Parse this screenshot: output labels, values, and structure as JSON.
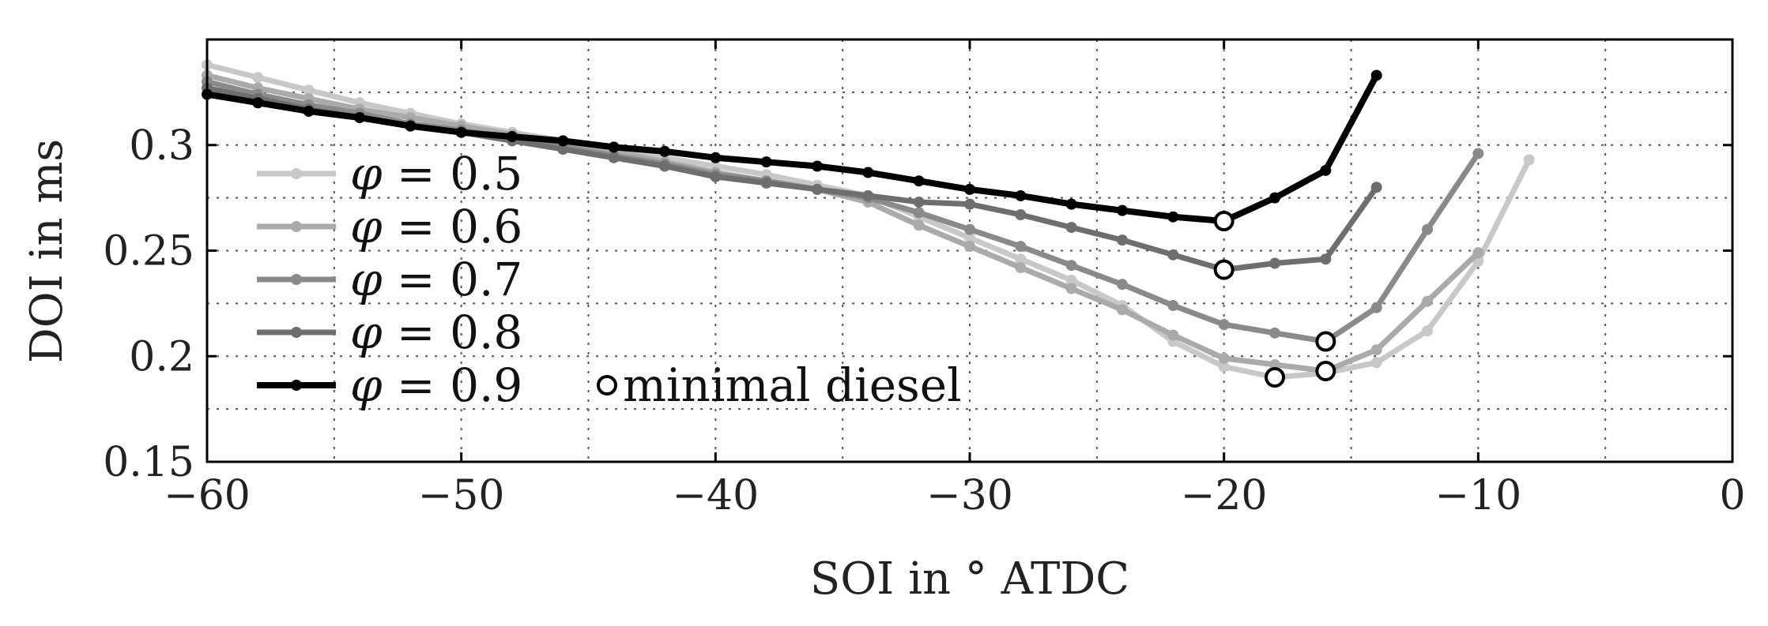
{
  "chart_data": {
    "type": "line",
    "title": "",
    "xlabel": "SOI in ° ATDC",
    "ylabel": "DOI in ms",
    "xlim": [
      -60,
      0
    ],
    "ylim": [
      0.15,
      0.35
    ],
    "grid": true,
    "x_ticks": [
      -60,
      -50,
      -40,
      -30,
      -20,
      -10,
      0
    ],
    "x_tick_labels": [
      "−60",
      "−50",
      "−40",
      "−30",
      "−20",
      "−10",
      "0"
    ],
    "y_ticks": [
      0.15,
      0.2,
      0.25,
      0.3
    ],
    "y_tick_labels": [
      "0.15",
      "0.2",
      "0.25",
      "0.3"
    ],
    "legend_position": "left",
    "series": [
      {
        "name": "φ = 0.5",
        "symbol": "φ",
        "value_text": " = 0.5",
        "color": "#c8c8c8",
        "width": 7,
        "x": [
          -60,
          -58,
          -56,
          -54,
          -52,
          -50,
          -48,
          -46,
          -44,
          -42,
          -40,
          -38,
          -36,
          -34,
          -32,
          -30,
          -28,
          -26,
          -24,
          -22,
          -20,
          -18,
          -16,
          -14,
          -12,
          -10,
          -8
        ],
        "y": [
          0.338,
          0.332,
          0.326,
          0.32,
          0.315,
          0.31,
          0.306,
          0.302,
          0.298,
          0.294,
          0.29,
          0.286,
          0.281,
          0.276,
          0.266,
          0.256,
          0.246,
          0.236,
          0.224,
          0.207,
          0.195,
          0.19,
          0.192,
          0.197,
          0.212,
          0.245,
          0.293
        ]
      },
      {
        "name": "φ = 0.6",
        "symbol": "φ",
        "value_text": " = 0.6",
        "color": "#aaaaaa",
        "width": 7,
        "x": [
          -60,
          -58,
          -56,
          -54,
          -52,
          -50,
          -48,
          -46,
          -44,
          -42,
          -40,
          -38,
          -36,
          -34,
          -32,
          -30,
          -28,
          -26,
          -24,
          -22,
          -20,
          -18,
          -16,
          -14,
          -12,
          -10
        ],
        "y": [
          0.333,
          0.327,
          0.322,
          0.317,
          0.313,
          0.309,
          0.305,
          0.301,
          0.297,
          0.292,
          0.287,
          0.283,
          0.279,
          0.273,
          0.262,
          0.252,
          0.242,
          0.232,
          0.222,
          0.21,
          0.199,
          0.196,
          0.193,
          0.203,
          0.226,
          0.249
        ]
      },
      {
        "name": "φ = 0.7",
        "symbol": "φ",
        "value_text": " = 0.7",
        "color": "#8a8a8a",
        "width": 7,
        "x": [
          -60,
          -58,
          -56,
          -54,
          -52,
          -50,
          -48,
          -46,
          -44,
          -42,
          -40,
          -38,
          -36,
          -34,
          -32,
          -30,
          -28,
          -26,
          -24,
          -22,
          -20,
          -18,
          -16,
          -14,
          -12,
          -10
        ],
        "y": [
          0.33,
          0.324,
          0.319,
          0.315,
          0.31,
          0.307,
          0.303,
          0.299,
          0.295,
          0.291,
          0.286,
          0.283,
          0.279,
          0.275,
          0.268,
          0.26,
          0.252,
          0.243,
          0.234,
          0.224,
          0.215,
          0.211,
          0.207,
          0.223,
          0.26,
          0.296
        ]
      },
      {
        "name": "φ = 0.8",
        "symbol": "φ",
        "value_text": " = 0.8",
        "color": "#6e6e6e",
        "width": 7,
        "x": [
          -60,
          -58,
          -56,
          -54,
          -52,
          -50,
          -48,
          -46,
          -44,
          -42,
          -40,
          -38,
          -36,
          -34,
          -32,
          -30,
          -28,
          -26,
          -24,
          -22,
          -20,
          -18,
          -16,
          -14
        ],
        "y": [
          0.327,
          0.322,
          0.317,
          0.313,
          0.309,
          0.306,
          0.302,
          0.298,
          0.294,
          0.29,
          0.285,
          0.282,
          0.279,
          0.276,
          0.273,
          0.272,
          0.267,
          0.261,
          0.255,
          0.248,
          0.241,
          0.244,
          0.246,
          0.28
        ]
      },
      {
        "name": "φ = 0.9",
        "symbol": "φ",
        "value_text": " = 0.9",
        "color": "#000000",
        "width": 8,
        "x": [
          -60,
          -58,
          -56,
          -54,
          -52,
          -50,
          -48,
          -46,
          -44,
          -42,
          -40,
          -38,
          -36,
          -34,
          -32,
          -30,
          -28,
          -26,
          -24,
          -22,
          -20,
          -18,
          -16,
          -14
        ],
        "y": [
          0.324,
          0.32,
          0.316,
          0.313,
          0.309,
          0.306,
          0.304,
          0.302,
          0.299,
          0.297,
          0.294,
          0.292,
          0.29,
          0.287,
          0.283,
          0.279,
          0.276,
          0.272,
          0.269,
          0.266,
          0.264,
          0.275,
          0.288,
          0.333
        ]
      }
    ],
    "minimal_diesel": {
      "label": "minimal diesel",
      "x": [
        -18,
        -16,
        -16,
        -20,
        -20
      ],
      "y": [
        0.19,
        0.193,
        0.207,
        0.241,
        0.264
      ]
    }
  }
}
